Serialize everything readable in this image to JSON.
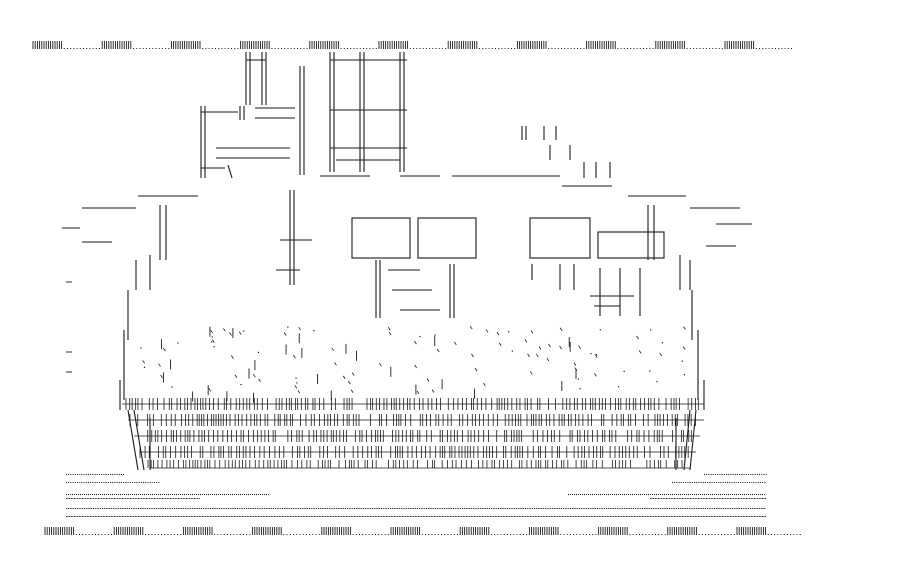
{
  "page": {
    "background": "#ffffff",
    "ink_color": "#1a1a1a"
  },
  "artwork": {
    "kind": "text-art-picture",
    "description_visible_text": ""
  }
}
